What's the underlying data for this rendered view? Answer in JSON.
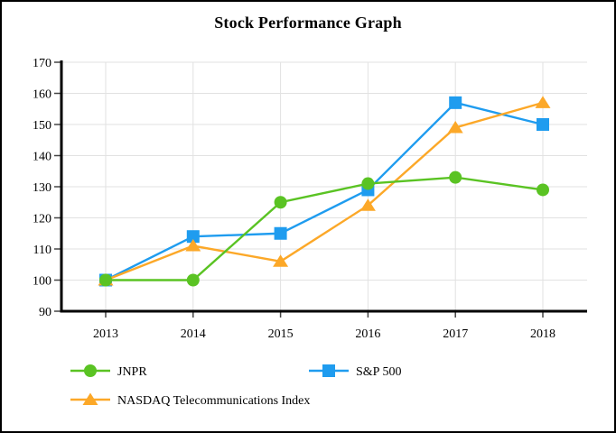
{
  "chart_data": {
    "type": "line",
    "title": "Stock Performance Graph",
    "xlabel": "",
    "ylabel": "",
    "categories": [
      "2013",
      "2014",
      "2015",
      "2016",
      "2017",
      "2018"
    ],
    "series": [
      {
        "name": "JNPR",
        "marker": "circle",
        "color": "#5AC323",
        "values": [
          100,
          100,
          125,
          131,
          133,
          129
        ]
      },
      {
        "name": "S&P 500",
        "marker": "square",
        "color": "#1F9CEF",
        "values": [
          100,
          114,
          115,
          129,
          157,
          150
        ]
      },
      {
        "name": "NASDAQ Telecommunications Index",
        "marker": "triangle",
        "color": "#FCA828",
        "values": [
          100,
          111,
          106,
          124,
          149,
          157
        ]
      }
    ],
    "z_order": [
      1,
      2,
      0
    ],
    "ylim": [
      90,
      170
    ],
    "ytick_step": 10,
    "yticks": [
      90,
      100,
      110,
      120,
      130,
      140,
      150,
      160,
      170
    ],
    "grid": true,
    "gridline_color": "#E2E2E2",
    "axis_color": "#000000",
    "tick_color": "#444444",
    "text_color": "#000000",
    "legend_position": "bottom-left"
  }
}
